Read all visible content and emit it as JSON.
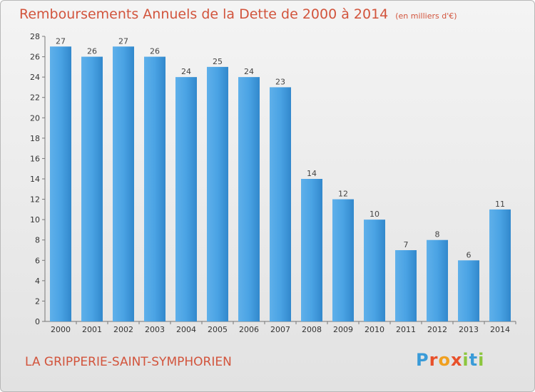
{
  "title": "Remboursements Annuels de la Dette de 2000 à 2014",
  "unit": "(en milliers d'€)",
  "commune": "LA GRIPPERIE-SAINT-SYMPHORIEN",
  "logo": {
    "letters": [
      "P",
      "r",
      "o",
      "x",
      "i",
      "t",
      "i"
    ],
    "colors": [
      "#3a9bd8",
      "#e8502a",
      "#f0a020",
      "#e8502a",
      "#8cc63e",
      "#3a9bd8",
      "#8cc63e"
    ]
  },
  "colors": {
    "bar": "#3d95d8",
    "bar_light": "#5fb0ea",
    "bar_dark": "#2f7fc4",
    "text": "#d2543c"
  },
  "chart_data": {
    "type": "bar",
    "categories": [
      "2000",
      "2001",
      "2002",
      "2003",
      "2004",
      "2005",
      "2006",
      "2007",
      "2008",
      "2009",
      "2010",
      "2011",
      "2012",
      "2013",
      "2014"
    ],
    "values": [
      27,
      26,
      27,
      26,
      24,
      25,
      24,
      23,
      14,
      12,
      10,
      7,
      8,
      6,
      11
    ],
    "ylim": [
      0,
      28
    ],
    "yticks": [
      0,
      2,
      4,
      6,
      8,
      10,
      12,
      14,
      16,
      18,
      20,
      22,
      24,
      26,
      28
    ],
    "grid": false,
    "data_labels": true
  }
}
